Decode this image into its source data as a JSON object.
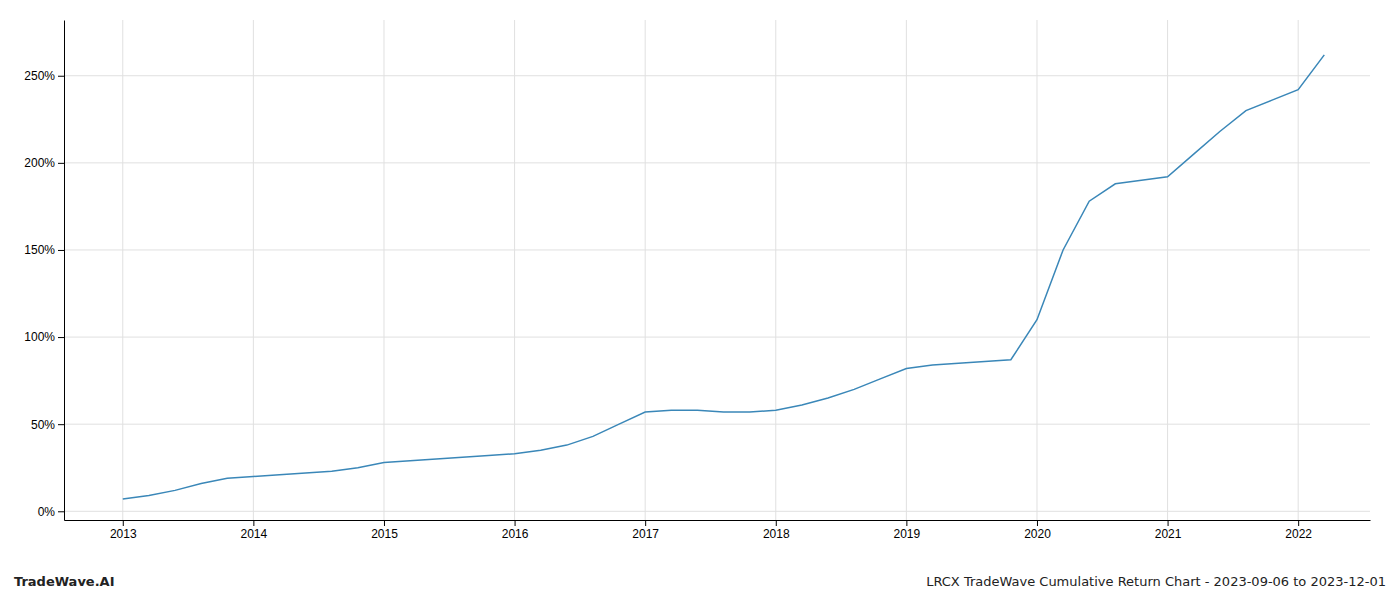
{
  "chart_data": {
    "type": "line",
    "x": [
      2013.0,
      2013.2,
      2013.4,
      2013.6,
      2013.8,
      2014.0,
      2014.2,
      2014.4,
      2014.6,
      2014.8,
      2015.0,
      2015.2,
      2015.4,
      2015.6,
      2015.8,
      2016.0,
      2016.2,
      2016.4,
      2016.6,
      2016.8,
      2017.0,
      2017.2,
      2017.4,
      2017.6,
      2017.8,
      2018.0,
      2018.2,
      2018.4,
      2018.6,
      2018.8,
      2019.0,
      2019.2,
      2019.4,
      2019.6,
      2019.8,
      2020.0,
      2020.2,
      2020.4,
      2020.6,
      2020.8,
      2021.0,
      2021.2,
      2021.4,
      2021.6,
      2021.8,
      2022.0,
      2022.2
    ],
    "values": [
      0.07,
      0.09,
      0.12,
      0.16,
      0.19,
      0.2,
      0.21,
      0.22,
      0.23,
      0.25,
      0.28,
      0.29,
      0.3,
      0.31,
      0.32,
      0.33,
      0.35,
      0.38,
      0.43,
      0.5,
      0.57,
      0.58,
      0.58,
      0.57,
      0.57,
      0.58,
      0.61,
      0.65,
      0.7,
      0.76,
      0.82,
      0.84,
      0.85,
      0.86,
      0.87,
      1.1,
      1.5,
      1.78,
      1.88,
      1.9,
      1.92,
      2.05,
      2.18,
      2.3,
      2.36,
      2.42,
      2.62
    ],
    "color": "#3a87b8",
    "xlim": [
      2012.55,
      2022.55
    ],
    "xticks": [
      2013,
      2014,
      2015,
      2016,
      2017,
      2018,
      2019,
      2020,
      2021,
      2022
    ],
    "ylim": [
      -0.05,
      2.82
    ],
    "yticks": [
      {
        "value": 0.0,
        "label": "0%"
      },
      {
        "value": 0.5,
        "label": "50%"
      },
      {
        "value": 1.0,
        "label": "100%"
      },
      {
        "value": 1.5,
        "label": "150%"
      },
      {
        "value": 2.0,
        "label": "200%"
      },
      {
        "value": 2.5,
        "label": "250%"
      }
    ],
    "grid": true,
    "annotations": [
      "TradeWave.AI",
      "LRCX TradeWave Cumulative Return Chart - 2023-09-06 to 2023-12-01"
    ]
  }
}
